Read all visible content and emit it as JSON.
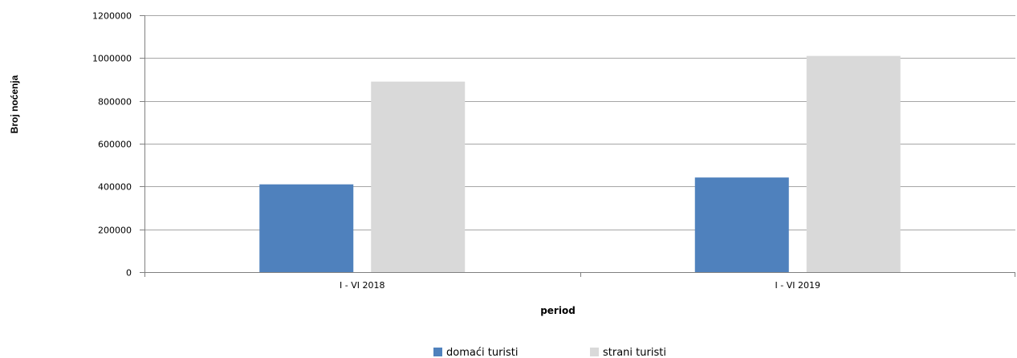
{
  "chart_data": {
    "type": "bar",
    "categories": [
      "I - VI 2018",
      "I - VI 2019"
    ],
    "series": [
      {
        "name": "domaći turisti",
        "values": [
          410000,
          442000
        ],
        "color": "#4F81BD"
      },
      {
        "name": "strani turisti",
        "values": [
          890000,
          1010000
        ],
        "color": "#D9D9D9"
      }
    ],
    "xlabel": "period",
    "ylabel": "Broj noćenja",
    "ylim": [
      0,
      1200000
    ],
    "yticks": [
      "0",
      "200000",
      "400000",
      "600000",
      "800000",
      "1000000",
      "1200000"
    ],
    "grid": true,
    "legend_position": "bottom"
  }
}
